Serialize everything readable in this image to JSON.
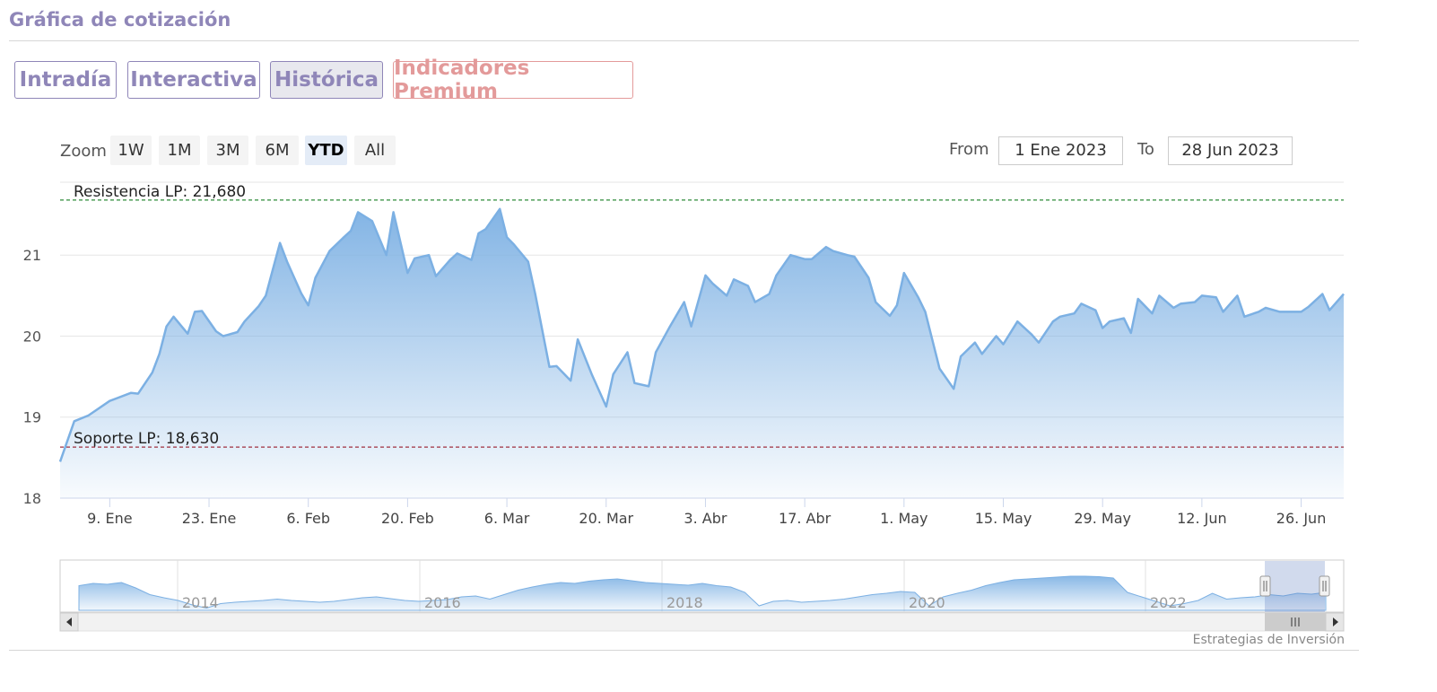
{
  "header": {
    "title": "Gráfica de cotización"
  },
  "tabs": [
    {
      "label": "Intradía"
    },
    {
      "label": "Interactiva"
    },
    {
      "label": "Histórica",
      "active": true
    },
    {
      "label": "Indicadores Premium"
    }
  ],
  "range_selector": {
    "zoom_label": "Zoom",
    "buttons": [
      "1W",
      "1M",
      "3M",
      "6M",
      "YTD",
      "All"
    ],
    "selected": "YTD",
    "from_label": "From",
    "from_value": "1 Ene 2023",
    "to_label": "To",
    "to_value": "28 Jun 2023"
  },
  "credit": "Estrategias de Inversión",
  "colors": {
    "line": "#7cb0e3",
    "area_top": "#7cb0e3",
    "resistance": "#2e8b3a",
    "support": "#a03040",
    "accent": "#8f86b8",
    "premium": "#e39a9a"
  },
  "chart_data": {
    "type": "area",
    "title": "",
    "xlabel": "",
    "ylabel": "",
    "x_start": "2023-01-02",
    "ylim": [
      18,
      21.9
    ],
    "yticks": [
      18,
      19,
      20,
      21
    ],
    "xticks": [
      {
        "day": 7,
        "label": "9. Ene"
      },
      {
        "day": 21,
        "label": "23. Ene"
      },
      {
        "day": 35,
        "label": "6. Feb"
      },
      {
        "day": 49,
        "label": "20. Feb"
      },
      {
        "day": 63,
        "label": "6. Mar"
      },
      {
        "day": 77,
        "label": "20. Mar"
      },
      {
        "day": 91,
        "label": "3. Abr"
      },
      {
        "day": 105,
        "label": "17. Abr"
      },
      {
        "day": 119,
        "label": "1. May"
      },
      {
        "day": 133,
        "label": "15. May"
      },
      {
        "day": 147,
        "label": "29. May"
      },
      {
        "day": 161,
        "label": "12. Jun"
      },
      {
        "day": 175,
        "label": "26. Jun"
      }
    ],
    "xmax_day": 178,
    "plot_lines": [
      {
        "label": "Resistencia LP: 21,680",
        "value": 21.68,
        "style": "dashed",
        "color": "#2e8b3a"
      },
      {
        "label": "Soporte LP: 18,630",
        "value": 18.63,
        "style": "dashed",
        "color": "#a03040"
      }
    ],
    "series": [
      {
        "points": [
          [
            0,
            18.45
          ],
          [
            2,
            18.95
          ],
          [
            4,
            19.02
          ],
          [
            7,
            19.2
          ],
          [
            10,
            19.3
          ],
          [
            11,
            19.29
          ],
          [
            13,
            19.55
          ],
          [
            14,
            19.78
          ],
          [
            15,
            20.12
          ],
          [
            16,
            20.24
          ],
          [
            18,
            20.03
          ],
          [
            19,
            20.3
          ],
          [
            20,
            20.31
          ],
          [
            22,
            20.06
          ],
          [
            23,
            20.0
          ],
          [
            25,
            20.05
          ],
          [
            26,
            20.18
          ],
          [
            28,
            20.37
          ],
          [
            29,
            20.5
          ],
          [
            31,
            21.15
          ],
          [
            32,
            20.92
          ],
          [
            34,
            20.53
          ],
          [
            35,
            20.38
          ],
          [
            36,
            20.72
          ],
          [
            38,
            21.05
          ],
          [
            40,
            21.22
          ],
          [
            41,
            21.3
          ],
          [
            42,
            21.53
          ],
          [
            44,
            21.42
          ],
          [
            46,
            21.0
          ],
          [
            47,
            21.53
          ],
          [
            49,
            20.78
          ],
          [
            50,
            20.96
          ],
          [
            52,
            21.0
          ],
          [
            53,
            20.74
          ],
          [
            55,
            20.94
          ],
          [
            56,
            21.02
          ],
          [
            58,
            20.94
          ],
          [
            59,
            21.27
          ],
          [
            60,
            21.32
          ],
          [
            62,
            21.57
          ],
          [
            63,
            21.22
          ],
          [
            64,
            21.13
          ],
          [
            66,
            20.92
          ],
          [
            67,
            20.52
          ],
          [
            69,
            19.62
          ],
          [
            70,
            19.63
          ],
          [
            72,
            19.45
          ],
          [
            73,
            19.96
          ],
          [
            75,
            19.52
          ],
          [
            77,
            19.13
          ],
          [
            78,
            19.53
          ],
          [
            80,
            19.8
          ],
          [
            81,
            19.42
          ],
          [
            83,
            19.38
          ],
          [
            84,
            19.8
          ],
          [
            86,
            20.12
          ],
          [
            88,
            20.42
          ],
          [
            89,
            20.12
          ],
          [
            91,
            20.75
          ],
          [
            92,
            20.65
          ],
          [
            94,
            20.5
          ],
          [
            95,
            20.7
          ],
          [
            97,
            20.62
          ],
          [
            98,
            20.42
          ],
          [
            100,
            20.52
          ],
          [
            101,
            20.75
          ],
          [
            103,
            21.0
          ],
          [
            105,
            20.95
          ],
          [
            106,
            20.95
          ],
          [
            108,
            21.1
          ],
          [
            109,
            21.05
          ],
          [
            111,
            21.0
          ],
          [
            112,
            20.98
          ],
          [
            114,
            20.72
          ],
          [
            115,
            20.42
          ],
          [
            117,
            20.25
          ],
          [
            118,
            20.38
          ],
          [
            119,
            20.78
          ],
          [
            121,
            20.48
          ],
          [
            122,
            20.3
          ],
          [
            124,
            19.6
          ],
          [
            126,
            19.35
          ],
          [
            127,
            19.75
          ],
          [
            129,
            19.92
          ],
          [
            130,
            19.78
          ],
          [
            132,
            20.0
          ],
          [
            133,
            19.9
          ],
          [
            135,
            20.18
          ],
          [
            137,
            20.02
          ],
          [
            138,
            19.92
          ],
          [
            140,
            20.18
          ],
          [
            141,
            20.24
          ],
          [
            143,
            20.28
          ],
          [
            144,
            20.4
          ],
          [
            146,
            20.32
          ],
          [
            147,
            20.1
          ],
          [
            148,
            20.18
          ],
          [
            150,
            20.22
          ],
          [
            151,
            20.04
          ],
          [
            152,
            20.46
          ],
          [
            154,
            20.28
          ],
          [
            155,
            20.5
          ],
          [
            157,
            20.35
          ],
          [
            158,
            20.4
          ],
          [
            160,
            20.42
          ],
          [
            161,
            20.5
          ],
          [
            163,
            20.48
          ],
          [
            164,
            20.3
          ],
          [
            166,
            20.5
          ],
          [
            167,
            20.24
          ],
          [
            169,
            20.3
          ],
          [
            170,
            20.35
          ],
          [
            172,
            20.3
          ],
          [
            173,
            20.3
          ],
          [
            175,
            20.3
          ],
          [
            176,
            20.36
          ],
          [
            178,
            20.52
          ],
          [
            179,
            20.32
          ],
          [
            181,
            20.52
          ]
        ]
      }
    ],
    "navigator": {
      "year_labels": [
        "2014",
        "2016",
        "2018",
        "2020",
        "2022"
      ],
      "profile": [
        0.55,
        0.6,
        0.58,
        0.62,
        0.5,
        0.35,
        0.28,
        0.22,
        0.12,
        0.05,
        0.15,
        0.18,
        0.2,
        0.22,
        0.25,
        0.22,
        0.2,
        0.18,
        0.2,
        0.24,
        0.28,
        0.3,
        0.26,
        0.22,
        0.2,
        0.22,
        0.24,
        0.3,
        0.32,
        0.25,
        0.35,
        0.45,
        0.52,
        0.58,
        0.62,
        0.6,
        0.65,
        0.68,
        0.7,
        0.66,
        0.62,
        0.6,
        0.58,
        0.56,
        0.6,
        0.55,
        0.52,
        0.4,
        0.1,
        0.2,
        0.22,
        0.18,
        0.2,
        0.22,
        0.25,
        0.3,
        0.35,
        0.38,
        0.42,
        0.4,
        0.1,
        0.3,
        0.38,
        0.45,
        0.55,
        0.62,
        0.68,
        0.7,
        0.72,
        0.74,
        0.76,
        0.76,
        0.75,
        0.72,
        0.4,
        0.3,
        0.2,
        0.1,
        0.15,
        0.22,
        0.38,
        0.25,
        0.28,
        0.3,
        0.35,
        0.32,
        0.38,
        0.36,
        0.4
      ]
    }
  }
}
